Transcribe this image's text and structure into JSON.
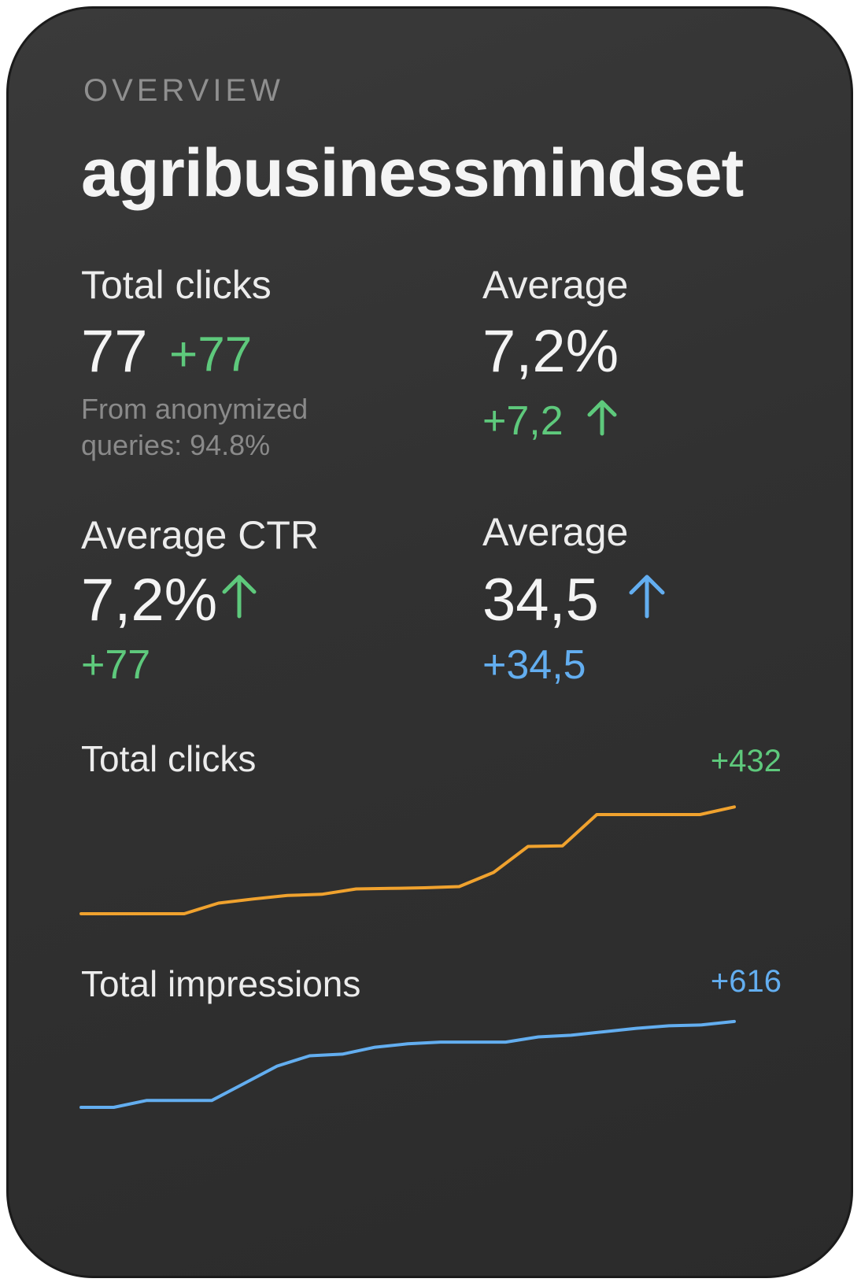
{
  "header": {
    "eyebrow": "OVERVIEW",
    "site_name": "agribusinessmindset"
  },
  "metrics": {
    "total_clicks": {
      "label": "Total clicks",
      "value": "77",
      "delta": "+77",
      "note_line1": "From anonymized",
      "note_line2": "queries: 94.8%"
    },
    "average_top": {
      "label": "Average",
      "value": "7,2%",
      "delta": "+7,2",
      "arrow": "arrow-up-icon",
      "color": "#5ec97c"
    },
    "average_ctr": {
      "label": "Average CTR",
      "value": "7,2%",
      "delta": "+77",
      "arrow": "arrow-up-icon",
      "color": "#5ec97c"
    },
    "average_position": {
      "label": "Average",
      "value": "34,5",
      "delta": "+34,5",
      "arrow": "arrow-up-icon",
      "color": "#63aef0"
    }
  },
  "colors": {
    "green": "#5ec97c",
    "blue": "#63aef0",
    "orange": "#f0a22e"
  },
  "chart_data": [
    {
      "type": "line",
      "title": "Total clicks",
      "annotation": "+432",
      "color": "#f0a22e",
      "x": [
        0,
        1,
        2,
        3,
        4,
        5,
        6,
        7,
        8,
        9,
        10,
        11,
        12,
        13,
        14,
        15,
        16,
        17,
        18,
        19
      ],
      "series": [
        {
          "values": [
            0,
            0,
            0,
            0,
            18,
            25,
            31,
            33,
            42,
            43,
            44,
            46,
            70,
            114,
            115,
            168,
            168,
            168,
            168,
            181
          ]
        }
      ],
      "ylim": [
        0,
        200
      ]
    },
    {
      "type": "line",
      "title": "Total impressions",
      "annotation": "+616",
      "color": "#63aef0",
      "x": [
        0,
        1,
        2,
        3,
        4,
        5,
        6,
        7,
        8,
        9,
        10,
        11,
        12,
        13,
        14,
        15,
        16,
        17,
        18,
        19,
        20
      ],
      "series": [
        {
          "values": [
            0,
            0,
            8,
            8,
            8,
            28,
            48,
            60,
            62,
            70,
            74,
            76,
            76,
            76,
            82,
            84,
            88,
            92,
            95,
            96,
            100
          ]
        }
      ],
      "ylim": [
        0,
        110
      ]
    }
  ]
}
